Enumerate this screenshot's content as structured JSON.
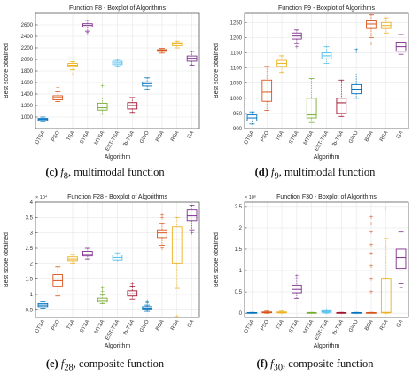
{
  "labels": [
    "DTSA",
    "PSO",
    "TSA",
    "STSA",
    "MTSA",
    "EST-TSA",
    "fb-TSA",
    "GWO",
    "BOA",
    "RSA",
    "GA"
  ],
  "xlabel": "Algorithm",
  "ylabel": "Best score obtained",
  "colors": [
    "#0072BD",
    "#D95319",
    "#EDB120",
    "#7E2F8E",
    "#77AC30",
    "#4DBEEE",
    "#A2142F",
    "#0072BD",
    "#D95319",
    "#EDB120",
    "#7E2F8E"
  ],
  "chart_data": [
    {
      "type": "box",
      "title": "Function F8 - Boxplot of Algorithms",
      "ylim": [
        800,
        2800
      ],
      "yticks": [
        1000,
        1200,
        1400,
        1600,
        1800,
        2000,
        2200,
        2400,
        2600
      ],
      "ytick_labels": [
        "1000",
        "1200",
        "1400",
        "1600",
        "1800",
        "2000",
        "2200",
        "2400",
        "2600"
      ],
      "exponent": "",
      "caption": {
        "letter": "(c)",
        "fn": "f",
        "sub": "8",
        "desc": ", multimodal function"
      },
      "boxes": [
        {
          "wlo": 920,
          "q1": 940,
          "med": 960,
          "q3": 975,
          "whi": 1000,
          "out": []
        },
        {
          "wlo": 1270,
          "q1": 1300,
          "med": 1340,
          "q3": 1370,
          "whi": 1440,
          "out": [
            1470,
            1510
          ]
        },
        {
          "wlo": 1820,
          "q1": 1880,
          "med": 1900,
          "q3": 1930,
          "whi": 1960,
          "out": [
            1750
          ]
        },
        {
          "wlo": 2490,
          "q1": 2560,
          "med": 2590,
          "q3": 2620,
          "whi": 2680,
          "out": [
            2460
          ]
        },
        {
          "wlo": 1050,
          "q1": 1120,
          "med": 1160,
          "q3": 1240,
          "whi": 1330,
          "out": [
            1550
          ]
        },
        {
          "wlo": 1880,
          "q1": 1910,
          "med": 1940,
          "q3": 1970,
          "whi": 2000,
          "out": []
        },
        {
          "wlo": 1080,
          "q1": 1140,
          "med": 1200,
          "q3": 1250,
          "whi": 1340,
          "out": []
        },
        {
          "wlo": 1480,
          "q1": 1540,
          "med": 1580,
          "q3": 1610,
          "whi": 1680,
          "out": []
        },
        {
          "wlo": 2110,
          "q1": 2140,
          "med": 2160,
          "q3": 2170,
          "whi": 2190,
          "out": []
        },
        {
          "wlo": 2200,
          "q1": 2240,
          "med": 2270,
          "q3": 2290,
          "whi": 2320,
          "out": []
        },
        {
          "wlo": 1900,
          "q1": 1970,
          "med": 2020,
          "q3": 2060,
          "whi": 2140,
          "out": []
        }
      ]
    },
    {
      "type": "box",
      "title": "Function F9 - Boxplot of Algorithms",
      "ylim": [
        900,
        1280
      ],
      "yticks": [
        900,
        950,
        1000,
        1050,
        1100,
        1150,
        1200,
        1250
      ],
      "ytick_labels": [
        "900",
        "950",
        "1000",
        "1050",
        "1100",
        "1150",
        "1200",
        "1250"
      ],
      "exponent": "",
      "caption": {
        "letter": "(d)",
        "fn": "f",
        "sub": "9",
        "desc": ", multimodal function"
      },
      "boxes": [
        {
          "wlo": 915,
          "q1": 925,
          "med": 935,
          "q3": 945,
          "whi": 955,
          "out": []
        },
        {
          "wlo": 960,
          "q1": 990,
          "med": 1020,
          "q3": 1060,
          "whi": 1105,
          "out": []
        },
        {
          "wlo": 1085,
          "q1": 1105,
          "med": 1115,
          "q3": 1125,
          "whi": 1140,
          "out": []
        },
        {
          "wlo": 1180,
          "q1": 1195,
          "med": 1205,
          "q3": 1215,
          "whi": 1225,
          "out": [
            1170
          ]
        },
        {
          "wlo": 920,
          "q1": 935,
          "med": 945,
          "q3": 1000,
          "whi": 1065,
          "out": []
        },
        {
          "wlo": 1115,
          "q1": 1130,
          "med": 1140,
          "q3": 1150,
          "whi": 1170,
          "out": []
        },
        {
          "wlo": 940,
          "q1": 950,
          "med": 985,
          "q3": 1000,
          "whi": 1060,
          "out": []
        },
        {
          "wlo": 1000,
          "q1": 1015,
          "med": 1030,
          "q3": 1045,
          "whi": 1080,
          "out": [
            1155,
            1160
          ]
        },
        {
          "wlo": 1200,
          "q1": 1230,
          "med": 1245,
          "q3": 1255,
          "whi": 1275,
          "out": [
            1180
          ]
        },
        {
          "wlo": 1215,
          "q1": 1230,
          "med": 1240,
          "q3": 1250,
          "whi": 1265,
          "out": []
        },
        {
          "wlo": 1145,
          "q1": 1155,
          "med": 1170,
          "q3": 1185,
          "whi": 1210,
          "out": []
        }
      ]
    },
    {
      "type": "box",
      "title": "Function F28 - Boxplot of Algorithms",
      "ylim": [
        0.25,
        4.0
      ],
      "yticks": [
        0.5,
        1.0,
        1.5,
        2.0,
        2.5,
        3.0,
        3.5,
        4.0
      ],
      "ytick_labels": [
        "0.5",
        "1",
        "1.5",
        "2",
        "2.5",
        "3",
        "3.5",
        "4"
      ],
      "exponent": "× 10⁴",
      "caption": {
        "letter": "(e)",
        "fn": "f",
        "sub": "28",
        "desc": ", composite function"
      },
      "boxes": [
        {
          "wlo": 0.55,
          "q1": 0.6,
          "med": 0.65,
          "q3": 0.7,
          "whi": 0.78,
          "out": []
        },
        {
          "wlo": 0.95,
          "q1": 1.25,
          "med": 1.45,
          "q3": 1.65,
          "whi": 1.9,
          "out": []
        },
        {
          "wlo": 2.0,
          "q1": 2.1,
          "med": 2.15,
          "q3": 2.22,
          "whi": 2.3,
          "out": []
        },
        {
          "wlo": 2.15,
          "q1": 2.25,
          "med": 2.3,
          "q3": 2.4,
          "whi": 2.5,
          "out": []
        },
        {
          "wlo": 0.7,
          "q1": 0.75,
          "med": 0.8,
          "q3": 0.88,
          "whi": 0.98,
          "out": [
            1.1,
            1.2
          ]
        },
        {
          "wlo": 2.05,
          "q1": 2.12,
          "med": 2.2,
          "q3": 2.28,
          "whi": 2.35,
          "out": []
        },
        {
          "wlo": 0.85,
          "q1": 0.95,
          "med": 1.02,
          "q3": 1.12,
          "whi": 1.25,
          "out": [
            1.35
          ]
        },
        {
          "wlo": 0.45,
          "q1": 0.5,
          "med": 0.55,
          "q3": 0.6,
          "whi": 0.65,
          "out": [
            0.72,
            0.78
          ]
        },
        {
          "wlo": 2.6,
          "q1": 2.85,
          "med": 3.0,
          "q3": 3.1,
          "whi": 3.3,
          "out": [
            2.5,
            3.5,
            3.6
          ]
        },
        {
          "wlo": 1.2,
          "q1": 2.0,
          "med": 2.8,
          "q3": 3.2,
          "whi": 3.5,
          "out": [
            0.3
          ]
        },
        {
          "wlo": 3.1,
          "q1": 3.4,
          "med": 3.55,
          "q3": 3.75,
          "whi": 3.9,
          "out": [
            3.0
          ]
        }
      ]
    },
    {
      "type": "box",
      "title": "Function F30 - Boxplot of Algorithms",
      "ylim": [
        -0.1,
        2.6
      ],
      "yticks": [
        0,
        0.5,
        1.0,
        1.5,
        2.0,
        2.5
      ],
      "ytick_labels": [
        "0",
        "0.5",
        "1",
        "1.5",
        "2",
        "2.5"
      ],
      "exponent": "× 10⁶",
      "caption": {
        "letter": "(f)",
        "fn": "f",
        "sub": "30",
        "desc": ", composite function"
      },
      "boxes": [
        {
          "wlo": 0.0,
          "q1": 0.005,
          "med": 0.01,
          "q3": 0.015,
          "whi": 0.02,
          "out": []
        },
        {
          "wlo": 0.0,
          "q1": 0.01,
          "med": 0.02,
          "q3": 0.03,
          "whi": 0.05,
          "out": []
        },
        {
          "wlo": 0.0,
          "q1": 0.01,
          "med": 0.02,
          "q3": 0.03,
          "whi": 0.05,
          "out": []
        },
        {
          "wlo": 0.35,
          "q1": 0.48,
          "med": 0.56,
          "q3": 0.66,
          "whi": 0.82,
          "out": [
            0.88
          ]
        },
        {
          "wlo": 0.0,
          "q1": 0.005,
          "med": 0.01,
          "q3": 0.015,
          "whi": 0.02,
          "out": []
        },
        {
          "wlo": 0.0,
          "q1": 0.02,
          "med": 0.04,
          "q3": 0.06,
          "whi": 0.1,
          "out": []
        },
        {
          "wlo": 0.0,
          "q1": 0.005,
          "med": 0.01,
          "q3": 0.015,
          "whi": 0.02,
          "out": []
        },
        {
          "wlo": 0.0,
          "q1": 0.005,
          "med": 0.01,
          "q3": 0.015,
          "whi": 0.02,
          "out": []
        },
        {
          "wlo": 0.0,
          "q1": 0.005,
          "med": 0.01,
          "q3": 0.015,
          "whi": 0.02,
          "out": [
            0.5,
            0.8,
            1.1,
            1.4,
            1.6,
            1.9,
            2.1,
            2.25
          ]
        },
        {
          "wlo": 0.0,
          "q1": 0.01,
          "med": 0.02,
          "q3": 0.8,
          "whi": 1.75,
          "out": [
            2.45
          ]
        },
        {
          "wlo": 0.7,
          "q1": 1.05,
          "med": 1.3,
          "q3": 1.5,
          "whi": 1.9,
          "out": [
            0.6
          ]
        }
      ]
    }
  ]
}
